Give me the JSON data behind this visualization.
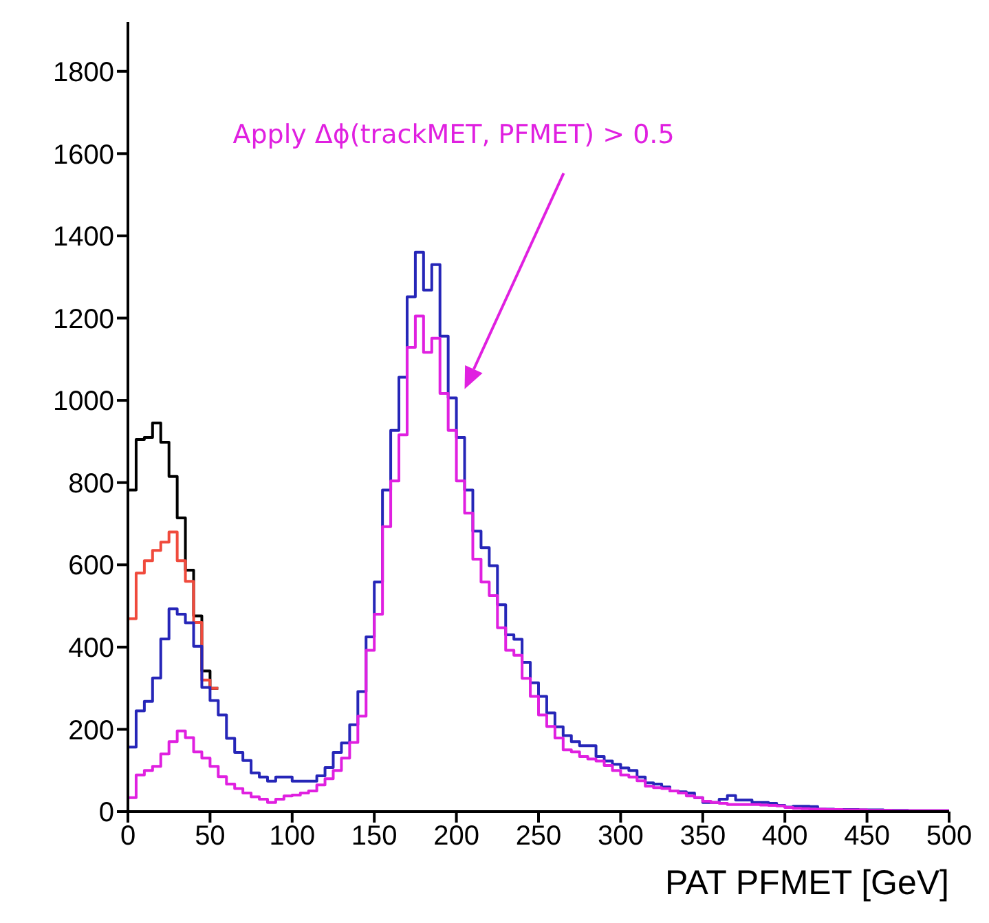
{
  "chart_data": {
    "type": "histogram",
    "xlabel": "PAT PFMET [GeV]",
    "bins": [
      0,
      5,
      10,
      15,
      20,
      25,
      30,
      35,
      40,
      45,
      50,
      55,
      60,
      65,
      70,
      75,
      80,
      85,
      90,
      95,
      100,
      105,
      110,
      115,
      120,
      125,
      130,
      135,
      140,
      145,
      150,
      155,
      160,
      165,
      170,
      175,
      180,
      185,
      190,
      195,
      200,
      205,
      210,
      215,
      220,
      225,
      230,
      235,
      240,
      245,
      250,
      255,
      260,
      265,
      270,
      275,
      280,
      285,
      290,
      295,
      300,
      305,
      310,
      315,
      320,
      325,
      330,
      335,
      340,
      345,
      350,
      355,
      360,
      365,
      370,
      375,
      380,
      385,
      390,
      395,
      400,
      405,
      410,
      415,
      420,
      425,
      430,
      435,
      440,
      445,
      450,
      455,
      460,
      465,
      470,
      475,
      480,
      485,
      490,
      495,
      500
    ],
    "series": [
      {
        "color": "#000000",
        "bins": [
          0,
          5,
          10,
          15,
          20,
          25,
          30,
          35,
          40,
          45,
          50,
          55
        ],
        "values": [
          782,
          905,
          910,
          945,
          898,
          815,
          714,
          587,
          476,
          342,
          300
        ]
      },
      {
        "color": "#f04a3c",
        "bins": [
          0,
          5,
          10,
          15,
          20,
          25,
          30,
          35,
          40,
          45,
          50,
          55
        ],
        "values": [
          469,
          580,
          610,
          635,
          655,
          680,
          610,
          560,
          460,
          320,
          300
        ]
      },
      {
        "color": "#2626b8",
        "values": [
          157,
          245,
          268,
          325,
          420,
          493,
          480,
          459,
          402,
          302,
          270,
          235,
          178,
          144,
          124,
          94,
          84,
          74,
          84,
          84,
          74,
          74,
          74,
          87,
          107,
          144,
          167,
          211,
          292,
          425,
          558,
          782,
          927,
          1056,
          1252,
          1360,
          1268,
          1330,
          1156,
          1006,
          910,
          782,
          682,
          642,
          598,
          503,
          430,
          419,
          363,
          313,
          280,
          240,
          206,
          185,
          170,
          160,
          160,
          134,
          123,
          115,
          106,
          100,
          84,
          70,
          67,
          60,
          50,
          48,
          45,
          34,
          22,
          22,
          30,
          39,
          28,
          28,
          22,
          22,
          20,
          15,
          11,
          13,
          13,
          12,
          6,
          6,
          5,
          5,
          5,
          4,
          4,
          4,
          3,
          3,
          3,
          2,
          2,
          2,
          2,
          2
        ]
      },
      {
        "color": "#e020e0",
        "values": [
          34,
          89,
          100,
          110,
          140,
          170,
          196,
          180,
          145,
          130,
          110,
          85,
          67,
          56,
          45,
          36,
          30,
          22,
          30,
          38,
          40,
          45,
          50,
          65,
          80,
          100,
          130,
          168,
          232,
          392,
          480,
          693,
          804,
          916,
          1129,
          1205,
          1117,
          1151,
          1017,
          927,
          804,
          726,
          614,
          558,
          525,
          447,
          392,
          380,
          324,
          280,
          235,
          207,
          179,
          150,
          145,
          134,
          128,
          123,
          112,
          100,
          89,
          84,
          75,
          62,
          58,
          56,
          50,
          45,
          38,
          34,
          25,
          22,
          20,
          17,
          17,
          17,
          17,
          16,
          15,
          14,
          10,
          8,
          7,
          6,
          6,
          5,
          5,
          4,
          4,
          4,
          3,
          3,
          3,
          2,
          2,
          2,
          2,
          2,
          2,
          2
        ]
      }
    ],
    "xlim": [
      0,
      500
    ],
    "xticks": [
      0,
      50,
      100,
      150,
      200,
      250,
      300,
      350,
      400,
      450,
      500
    ],
    "ylim": [
      0,
      1920
    ],
    "yticks": [
      0,
      200,
      400,
      600,
      800,
      1000,
      1200,
      1400,
      1600,
      1800
    ],
    "annotations": [
      "Apply Δϕ(trackMET, PFMET) > 0.5"
    ],
    "grid": false,
    "legend": false
  }
}
